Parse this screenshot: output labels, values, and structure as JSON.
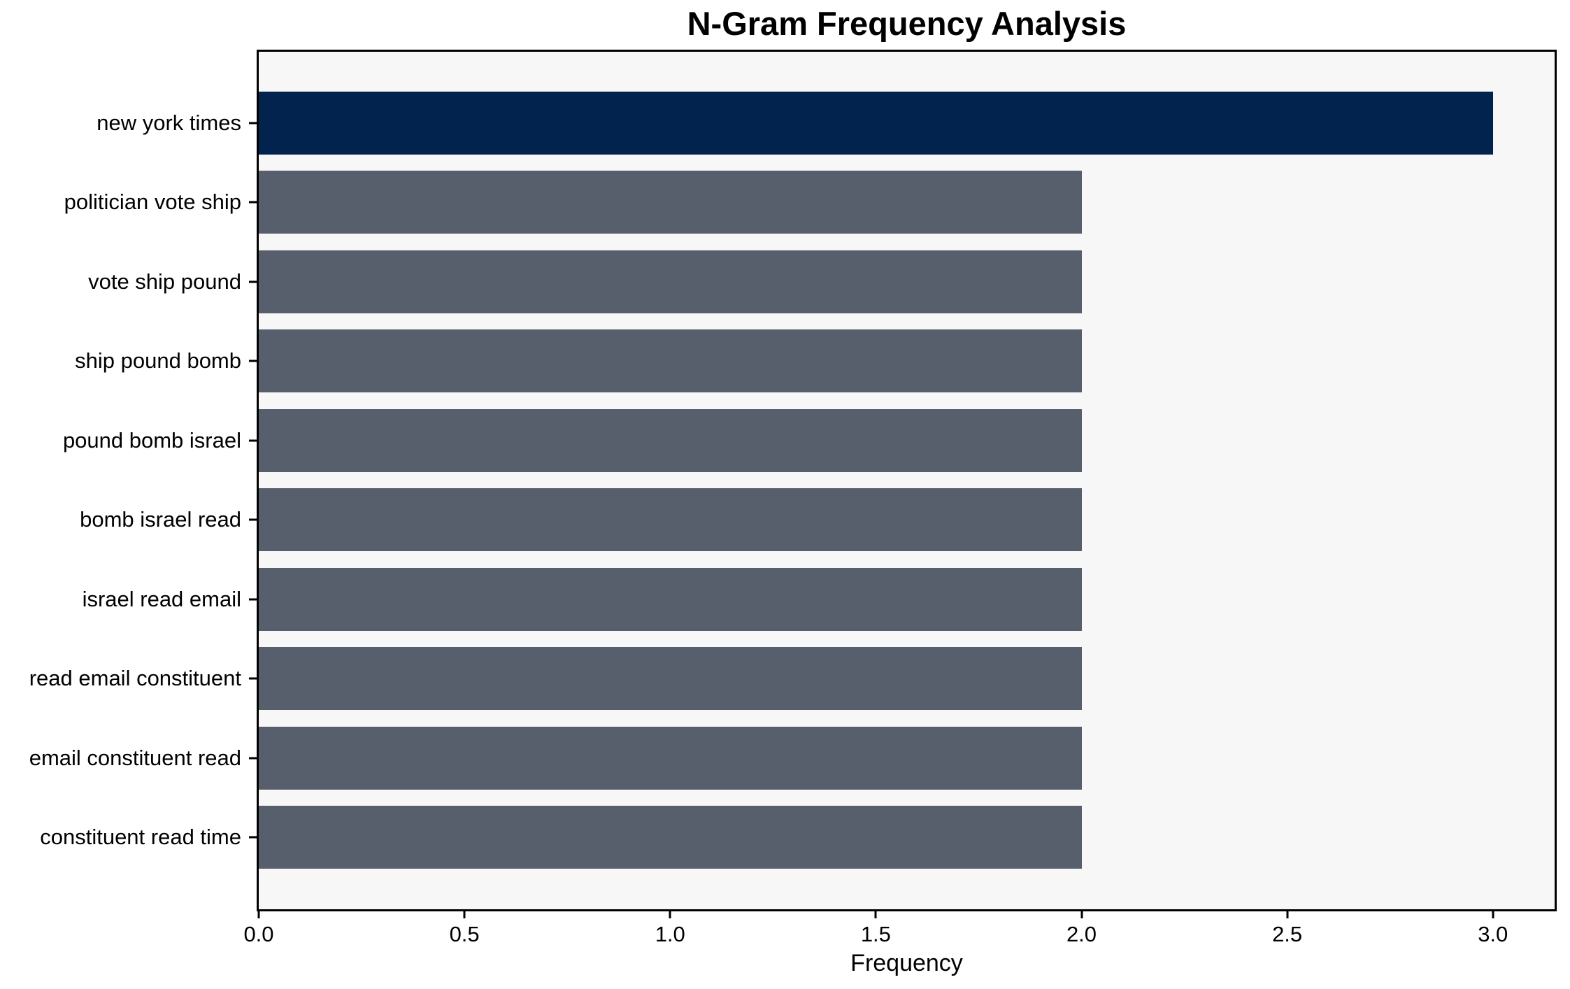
{
  "chart_data": {
    "type": "bar",
    "orientation": "horizontal",
    "title": "N-Gram Frequency Analysis",
    "xlabel": "Frequency",
    "ylabel": "",
    "categories": [
      "new york times",
      "politician vote ship",
      "vote ship pound",
      "ship pound bomb",
      "pound bomb israel",
      "bomb israel read",
      "israel read email",
      "read email constituent",
      "email constituent read",
      "constituent read time"
    ],
    "values": [
      3,
      2,
      2,
      2,
      2,
      2,
      2,
      2,
      2,
      2
    ],
    "xticks": [
      "0.0",
      "0.5",
      "1.0",
      "1.5",
      "2.0",
      "2.5",
      "3.0"
    ],
    "xtick_values": [
      0,
      0.5,
      1,
      1.5,
      2,
      2.5,
      3
    ],
    "xlim": [
      0,
      3.15
    ],
    "grid": false,
    "legend": null,
    "colors": {
      "highlight_bar": "#02234e",
      "default_bar": "#575e6c",
      "plot_background": "#f7f7f7",
      "figure_background": "#ffffff",
      "axis": "#000000",
      "text": "#000000"
    },
    "highlight_index": 0
  }
}
